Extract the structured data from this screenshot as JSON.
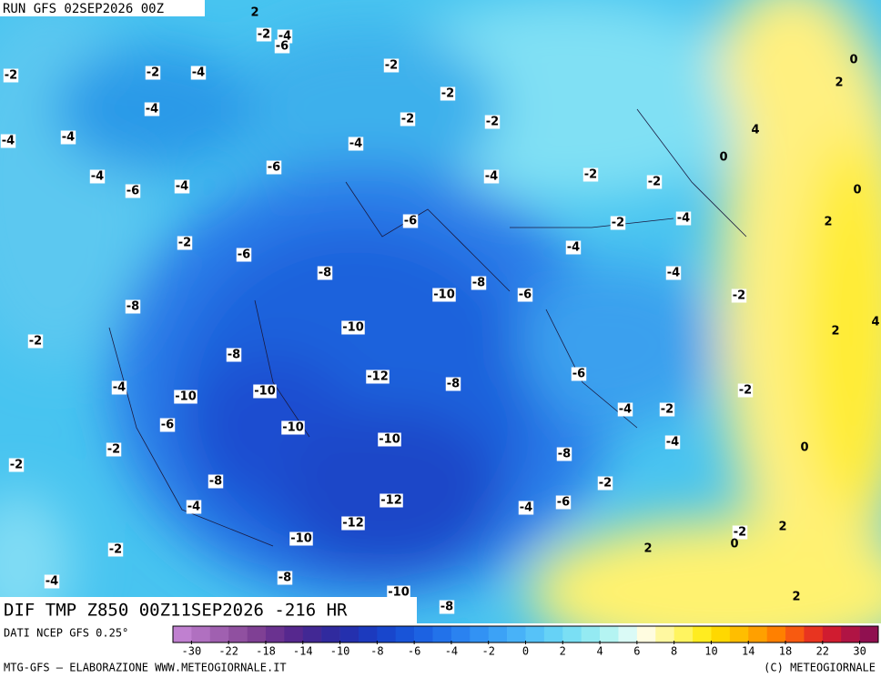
{
  "header": {
    "run": "RUN GFS 02SEP2026 00Z",
    "field": "DIF TMP Z850 00Z11SEP2026 -216 HR"
  },
  "footer": {
    "source": "DATI NCEP GFS 0.25°",
    "credit": "MTG-GFS — ELABORAZIONE WWW.METEOGIORNALE.IT",
    "copyright": "(C) METEOGIORNALE"
  },
  "colorbar": {
    "colors": [
      "#c080d0",
      "#b070c0",
      "#a060b0",
      "#9050a0",
      "#7f4094",
      "#6a3290",
      "#56288e",
      "#422894",
      "#302a9e",
      "#2430ae",
      "#1c3abe",
      "#1846cc",
      "#1854d8",
      "#1c62e2",
      "#2272ea",
      "#2a82f0",
      "#3292f4",
      "#3ca2f6",
      "#48b2f8",
      "#56c2f8",
      "#66d2f6",
      "#7adff4",
      "#94eaf2",
      "#b4f4f2",
      "#dafaf6",
      "#fffce0",
      "#fff8a0",
      "#fff460",
      "#ffec20",
      "#ffd800",
      "#ffbe00",
      "#ffa000",
      "#ff8000",
      "#f85a10",
      "#e83420",
      "#d01c30",
      "#b01444",
      "#901050"
    ],
    "ticks": [
      -30,
      -22,
      -18,
      -14,
      -10,
      -8,
      -6,
      -4,
      -2,
      0,
      2,
      4,
      6,
      8,
      10,
      14,
      18,
      22,
      30
    ]
  },
  "contour_labels": [
    -2,
    -2,
    -4,
    -6,
    2,
    -2,
    -4,
    -2,
    -2,
    -4,
    -2,
    -2,
    -4,
    -4,
    -4,
    -6,
    0,
    4,
    0,
    2,
    -4,
    -6,
    -4,
    -4,
    -2,
    -2,
    0,
    -6,
    -2,
    -4,
    2,
    -2,
    -6,
    -4,
    -8,
    -4,
    -8,
    -10,
    -6,
    -2,
    -8,
    -10,
    2,
    4,
    -2,
    -8,
    -12,
    -6,
    -4,
    -10,
    -10,
    -8,
    -2,
    -4,
    -2,
    -6,
    -10,
    -10,
    -4,
    -2,
    0,
    -8,
    -2,
    -8,
    -2,
    -12,
    -4,
    -6,
    -4,
    -12,
    2,
    -2,
    0,
    -10,
    -2,
    2,
    -8,
    -4,
    -10,
    2,
    -8
  ]
}
